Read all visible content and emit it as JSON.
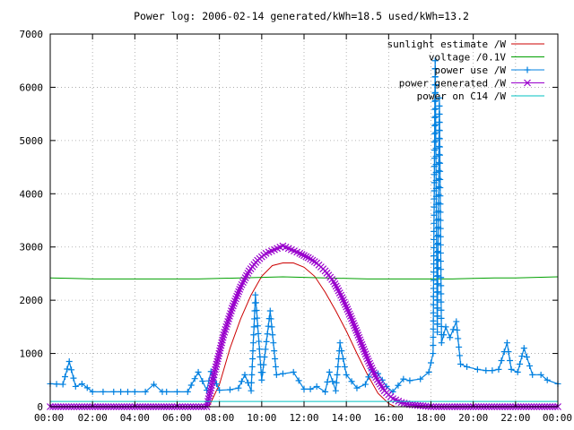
{
  "chart_data": {
    "type": "line",
    "title": "Power log: 2006-02-14 generated/kWh=18.5 used/kWh=13.2",
    "xlabel": "",
    "ylabel": "",
    "x_tick_labels": [
      "00:00",
      "02:00",
      "04:00",
      "06:00",
      "08:00",
      "10:00",
      "12:00",
      "14:00",
      "16:00",
      "18:00",
      "20:00",
      "22:00",
      "00:00"
    ],
    "xlim": [
      0,
      24
    ],
    "ylim": [
      0,
      7000
    ],
    "y_ticks": [
      0,
      1000,
      2000,
      3000,
      4000,
      5000,
      6000,
      7000
    ],
    "grid": true,
    "legend_position": "top-right",
    "series": [
      {
        "name": "sunlight estimate /W",
        "color": "#cc0000",
        "marker": "none",
        "x": [
          7.5,
          8.0,
          8.5,
          9.0,
          9.5,
          10.0,
          10.5,
          11.0,
          11.5,
          12.0,
          12.5,
          13.0,
          13.5,
          14.0,
          14.5,
          15.0,
          15.5,
          16.0,
          16.3
        ],
        "values": [
          0,
          420,
          1100,
          1650,
          2100,
          2450,
          2650,
          2700,
          2700,
          2620,
          2450,
          2150,
          1800,
          1420,
          1000,
          600,
          250,
          60,
          0
        ]
      },
      {
        "name": "voltage /0.1V",
        "color": "#00a000",
        "marker": "none",
        "x": [
          0,
          1,
          2,
          3,
          4,
          5,
          6,
          7,
          8,
          9,
          10,
          11,
          12,
          13,
          14,
          15,
          16,
          17,
          18,
          19,
          20,
          21,
          22,
          23,
          24
        ],
        "values": [
          2420,
          2410,
          2400,
          2400,
          2400,
          2400,
          2400,
          2400,
          2410,
          2420,
          2430,
          2440,
          2430,
          2420,
          2410,
          2400,
          2400,
          2400,
          2400,
          2400,
          2410,
          2420,
          2420,
          2430,
          2440
        ]
      },
      {
        "name": "power use /W",
        "color": "#0080e0",
        "marker": "plus",
        "x": [
          0,
          0.6,
          0.9,
          1.2,
          1.5,
          2.0,
          2.5,
          3.0,
          4.0,
          4.5,
          4.9,
          5.3,
          5.5,
          6.0,
          6.5,
          7.0,
          7.4,
          7.6,
          8.0,
          8.5,
          8.9,
          9.2,
          9.5,
          9.7,
          10.0,
          10.4,
          10.7,
          11.0,
          11.5,
          12.0,
          12.3,
          12.6,
          13.0,
          13.2,
          13.5,
          13.7,
          14.0,
          14.5,
          14.9,
          15.2,
          15.5,
          15.9,
          16.2,
          16.7,
          17.0,
          17.5,
          17.9,
          18.1,
          18.2,
          18.3,
          18.4,
          18.5,
          18.7,
          18.9,
          19.2,
          19.4,
          19.7,
          20.2,
          20.6,
          20.9,
          21.2,
          21.6,
          21.8,
          22.1,
          22.4,
          22.8,
          23.2,
          23.5,
          24
        ],
        "values": [
          430,
          420,
          850,
          380,
          430,
          280,
          280,
          280,
          280,
          280,
          420,
          280,
          280,
          280,
          280,
          650,
          310,
          660,
          310,
          320,
          350,
          600,
          300,
          2100,
          500,
          1800,
          600,
          620,
          650,
          330,
          330,
          380,
          280,
          650,
          300,
          1200,
          600,
          350,
          420,
          700,
          620,
          380,
          280,
          520,
          490,
          520,
          650,
          1000,
          6500,
          1400,
          5800,
          1200,
          1500,
          1300,
          1600,
          800,
          750,
          700,
          680,
          680,
          700,
          1200,
          700,
          650,
          1100,
          600,
          600,
          500,
          430
        ]
      },
      {
        "name": "power generated /W",
        "color": "#9900cc",
        "marker": "cross",
        "x": [
          0,
          3,
          6,
          7.4,
          7.8,
          8.2,
          8.6,
          9.0,
          9.4,
          9.8,
          10.2,
          10.6,
          11.0,
          11.4,
          11.8,
          12.2,
          12.6,
          13.0,
          13.4,
          13.8,
          14.2,
          14.6,
          15.0,
          15.4,
          15.8,
          16.2,
          16.6,
          17.0,
          17.5,
          18.0,
          20,
          22,
          24
        ],
        "values": [
          0,
          0,
          0,
          0,
          700,
          1350,
          1850,
          2250,
          2550,
          2750,
          2880,
          2950,
          3020,
          2950,
          2880,
          2800,
          2700,
          2550,
          2350,
          2050,
          1700,
          1300,
          900,
          550,
          300,
          150,
          80,
          40,
          20,
          0,
          0,
          0,
          0
        ]
      },
      {
        "name": "power on C14 /W",
        "color": "#00c0c0",
        "marker": "none",
        "x": [
          0,
          2,
          4,
          6,
          8,
          10,
          12,
          14,
          16,
          18,
          20,
          22,
          24
        ],
        "values": [
          100,
          100,
          100,
          100,
          100,
          100,
          100,
          100,
          100,
          100,
          100,
          100,
          100
        ]
      }
    ]
  }
}
